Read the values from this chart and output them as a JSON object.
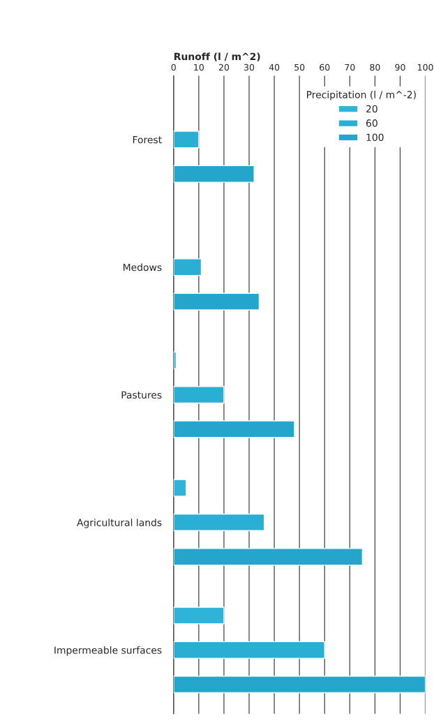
{
  "chart_data": {
    "type": "bar",
    "orientation": "horizontal",
    "xlabel": "Runoff (l / m^2)",
    "legend_title": "Precipitation (l / m^-2)",
    "categories": [
      "Forest",
      "Medows",
      "Pastures",
      "Agricultural lands",
      "Impermeable surfaces"
    ],
    "series": [
      {
        "name": "20",
        "color": "#2eb4d8",
        "values": [
          null,
          null,
          1,
          5,
          20
        ]
      },
      {
        "name": "60",
        "color": "#2aaed3",
        "values": [
          10,
          11,
          20,
          36,
          60
        ]
      },
      {
        "name": "100",
        "color": "#24a6cc",
        "values": [
          32,
          34,
          48,
          75,
          100
        ]
      }
    ],
    "xlim": [
      0,
      100
    ],
    "xticks": [
      0,
      10,
      20,
      30,
      40,
      50,
      60,
      70,
      80,
      90,
      100
    ],
    "grid": "x",
    "legend": "top right"
  }
}
